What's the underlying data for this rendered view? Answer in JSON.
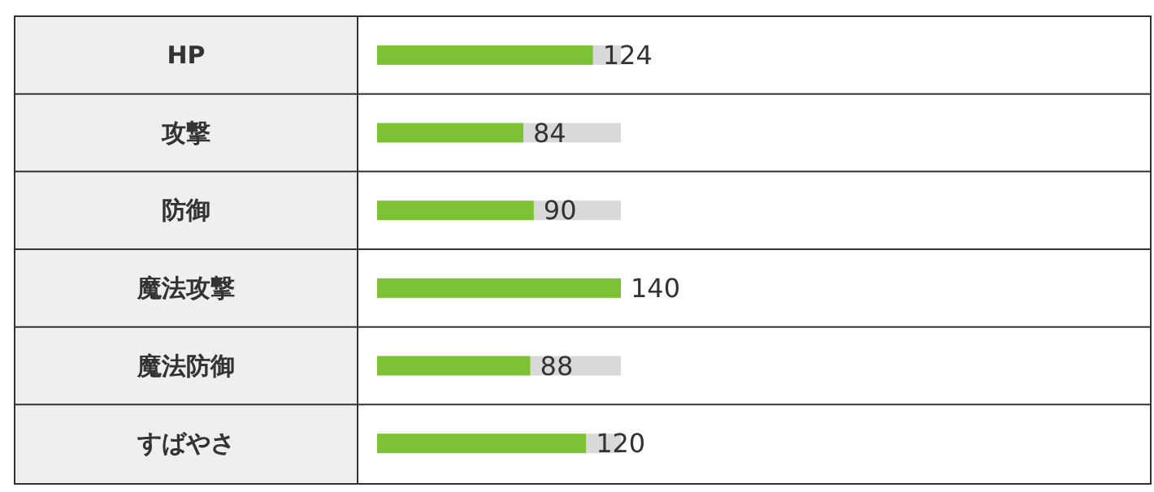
{
  "chart_data": {
    "type": "bar",
    "orientation": "horizontal",
    "categories": [
      "HP",
      "攻撃",
      "防御",
      "魔法攻撃",
      "魔法防御",
      "すばやさ"
    ],
    "values": [
      124,
      84,
      90,
      140,
      88,
      120
    ],
    "color": "#7cc234",
    "data_labels": true,
    "tick_labels": "y"
  }
}
